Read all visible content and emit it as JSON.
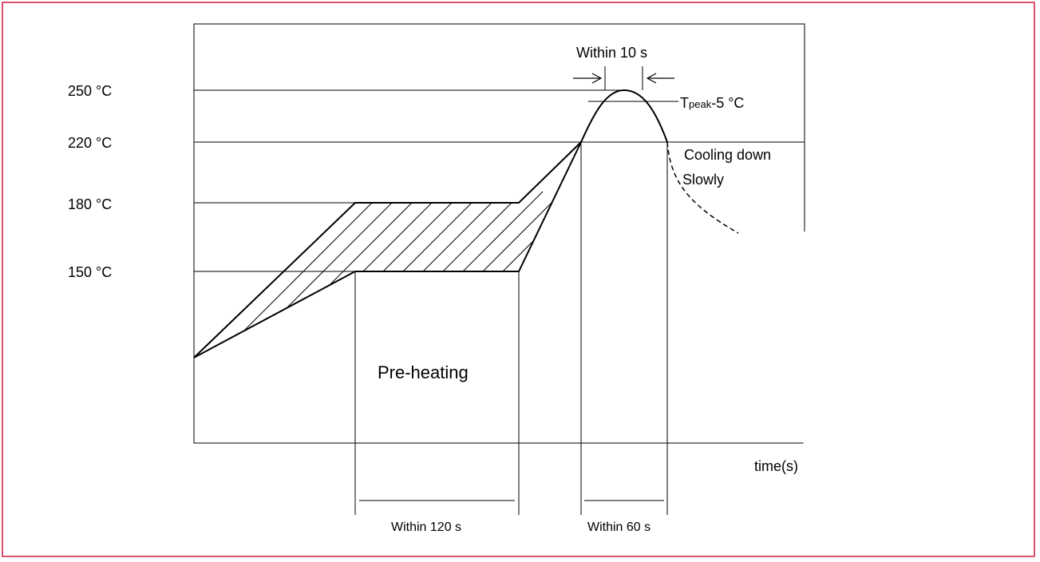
{
  "colors": {
    "frame": "#d9546f",
    "line": "#000000",
    "background": "#ffffff"
  },
  "temperatures": [
    {
      "label": "250 °C"
    },
    {
      "label": "220 °C"
    },
    {
      "label": "180 °C"
    },
    {
      "label": "150 °C"
    }
  ],
  "labels": {
    "within_10s": "Within 10 s",
    "tpeak_main": "T",
    "tpeak_sub": "peak",
    "tpeak_rest": "-5 °C",
    "cooling_line1": "Cooling down",
    "cooling_line2": "Slowly",
    "preheating": "Pre-heating",
    "time_axis": "time(s)",
    "within_120s": "Within 120 s",
    "within_60s": "Within 60 s"
  },
  "icons": [
    "right-arrow-icon",
    "left-arrow-icon"
  ]
}
